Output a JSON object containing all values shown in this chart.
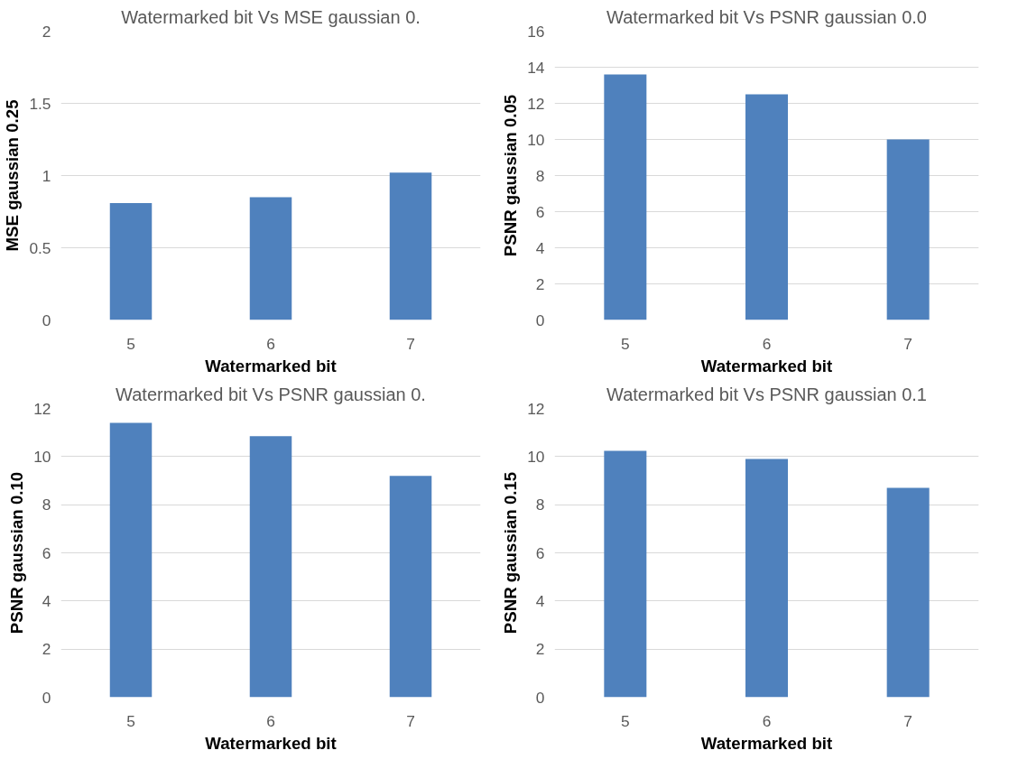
{
  "chart_data": [
    {
      "type": "bar",
      "title": "Watermarked bit Vs MSE gaussian 0.",
      "xlabel": "Watermarked bit",
      "ylabel": "MSE gaussian 0.25",
      "categories": [
        "5",
        "6",
        "7"
      ],
      "values": [
        0.81,
        0.85,
        1.02
      ],
      "color": "#4f81bd",
      "ylim": [
        0,
        2
      ],
      "yticks": [
        0,
        0.5,
        1,
        1.5,
        2
      ],
      "grid": "y"
    },
    {
      "type": "bar",
      "title": "Watermarked bit Vs PSNR gaussian 0.0",
      "xlabel": "Watermarked bit",
      "ylabel": "PSNR gaussian 0.05",
      "categories": [
        "5",
        "6",
        "7"
      ],
      "values": [
        13.6,
        12.5,
        10.0
      ],
      "color": "#4f81bd",
      "ylim": [
        0,
        16
      ],
      "yticks": [
        0,
        2,
        4,
        6,
        8,
        10,
        12,
        14,
        16
      ],
      "grid": "y"
    },
    {
      "type": "bar",
      "title": "Watermarked bit Vs PSNR gaussian 0.",
      "xlabel": "Watermarked bit",
      "ylabel": "PSNR gaussian 0.10",
      "categories": [
        "5",
        "6",
        "7"
      ],
      "values": [
        11.4,
        10.85,
        9.2
      ],
      "color": "#4f81bd",
      "ylim": [
        0,
        12
      ],
      "yticks": [
        0,
        2,
        4,
        6,
        8,
        10,
        12
      ],
      "grid": "y"
    },
    {
      "type": "bar",
      "title": "Watermarked bit Vs PSNR gaussian 0.1",
      "xlabel": "Watermarked bit",
      "ylabel": "PSNR gaussian 0.15",
      "categories": [
        "5",
        "6",
        "7"
      ],
      "values": [
        10.24,
        9.9,
        8.7
      ],
      "color": "#4f81bd",
      "ylim": [
        0,
        12
      ],
      "yticks": [
        0,
        2,
        4,
        6,
        8,
        10,
        12
      ],
      "grid": "y"
    }
  ]
}
